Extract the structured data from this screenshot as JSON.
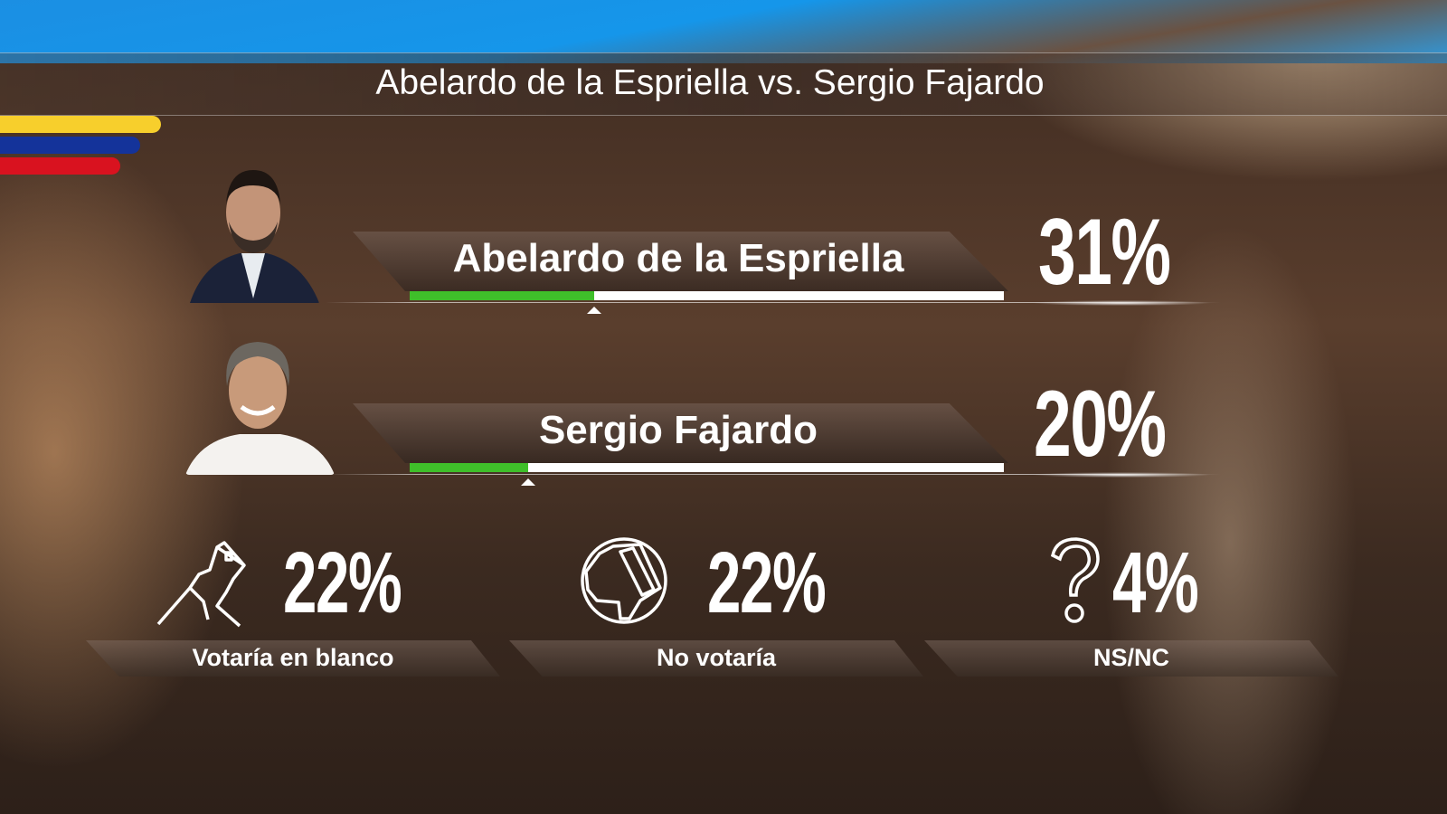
{
  "title": "Abelardo de la Espriella vs. Sergio Fajardo",
  "colors": {
    "bar_fill": "#3fbf2a",
    "bar_track": "#ffffff",
    "flag_yellow": "#f7cf2c",
    "flag_blue": "#14339a",
    "flag_red": "#d9121f"
  },
  "chart_data": {
    "type": "bar",
    "title": "Abelardo de la Espriella vs. Sergio Fajardo",
    "ylim": [
      0,
      100
    ],
    "categories": [
      "Abelardo de la Espriella",
      "Sergio Fajardo"
    ],
    "values": [
      31,
      20
    ],
    "value_labels": [
      "31%",
      "20%"
    ],
    "other": [
      {
        "label": "Votaría en blanco",
        "value": 22,
        "value_label": "22%",
        "icon": "ballot-hand-icon"
      },
      {
        "label": "No votaría",
        "value": 22,
        "value_label": "22%",
        "icon": "thumbs-down-icon"
      },
      {
        "label": "NS/NC",
        "value": 4,
        "value_label": "4%",
        "icon": "question-mark-icon"
      }
    ]
  }
}
